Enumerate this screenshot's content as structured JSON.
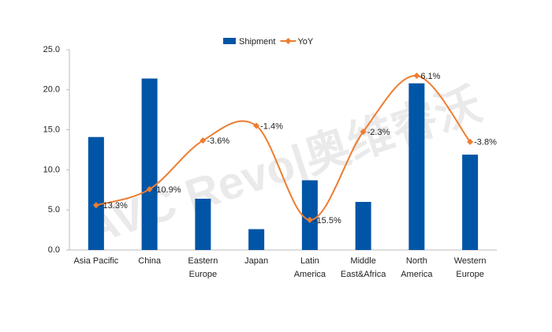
{
  "chart_data": {
    "type": "bar-line",
    "watermark": "AVC Revo|奥维睿沃",
    "categories": [
      "Asia Pacific",
      "China",
      "Eastern Europe",
      "Japan",
      "Latin America",
      "Middle East&Africa",
      "North America",
      "Western Europe"
    ],
    "series": [
      {
        "name": "Shipment",
        "type": "bar",
        "color": "#0055a6",
        "values": [
          14.1,
          21.4,
          6.4,
          2.6,
          8.7,
          6.0,
          20.8,
          11.9
        ]
      },
      {
        "name": "YoY",
        "type": "line",
        "axis": "y2",
        "color": "#ed7d31",
        "smooth": true,
        "values": [
          -13.3,
          -10.9,
          -3.6,
          -1.4,
          -15.5,
          -2.3,
          6.1,
          -3.8
        ],
        "value_labels": [
          "-13.3%",
          "-10.9%",
          "-3.6%",
          "-1.4%",
          "-15.5%",
          "-2.3%",
          "6.1%",
          "-3.8%"
        ]
      }
    ],
    "ylim": [
      0,
      25
    ],
    "yticks": [
      {
        "value": 0,
        "label": "0.0"
      },
      {
        "value": 5,
        "label": "5.0"
      },
      {
        "value": 10,
        "label": "10.0"
      },
      {
        "value": 15,
        "label": "15.0"
      },
      {
        "value": 20,
        "label": "20.0"
      },
      {
        "value": 25,
        "label": "25.0"
      }
    ],
    "y2lim": [
      -20,
      10
    ],
    "legend": "top"
  }
}
